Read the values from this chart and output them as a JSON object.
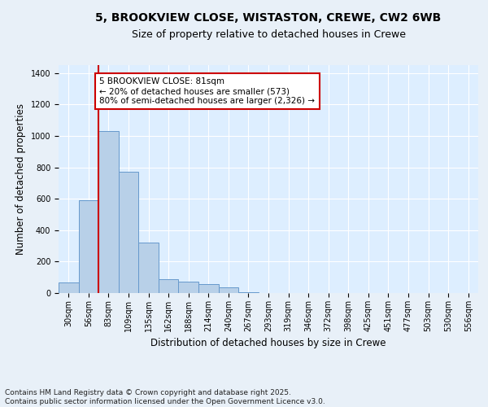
{
  "title_line1": "5, BROOKVIEW CLOSE, WISTASTON, CREWE, CW2 6WB",
  "title_line2": "Size of property relative to detached houses in Crewe",
  "xlabel": "Distribution of detached houses by size in Crewe",
  "ylabel": "Number of detached properties",
  "bin_labels": [
    "30sqm",
    "56sqm",
    "83sqm",
    "109sqm",
    "135sqm",
    "162sqm",
    "188sqm",
    "214sqm",
    "240sqm",
    "267sqm",
    "293sqm",
    "319sqm",
    "346sqm",
    "372sqm",
    "398sqm",
    "425sqm",
    "451sqm",
    "477sqm",
    "503sqm",
    "530sqm",
    "556sqm"
  ],
  "bar_values": [
    65,
    590,
    1030,
    770,
    320,
    90,
    75,
    55,
    35,
    5,
    0,
    0,
    0,
    0,
    0,
    0,
    0,
    0,
    0,
    0,
    0
  ],
  "bar_color": "#b8d0e8",
  "bar_edgecolor": "#6699cc",
  "background_color": "#ddeeff",
  "grid_color": "#ffffff",
  "fig_background": "#e8f0f8",
  "vline_x": 1.5,
  "vline_color": "#cc0000",
  "annotation_text": "5 BROOKVIEW CLOSE: 81sqm\n← 20% of detached houses are smaller (573)\n80% of semi-detached houses are larger (2,326) →",
  "annotation_box_facecolor": "#ffffff",
  "annotation_box_edgecolor": "#cc0000",
  "ylim": [
    0,
    1450
  ],
  "yticks": [
    0,
    200,
    400,
    600,
    800,
    1000,
    1200,
    1400
  ],
  "footer_text": "Contains HM Land Registry data © Crown copyright and database right 2025.\nContains public sector information licensed under the Open Government Licence v3.0.",
  "title_fontsize": 10,
  "subtitle_fontsize": 9,
  "axis_label_fontsize": 8.5,
  "tick_fontsize": 7,
  "annotation_fontsize": 7.5,
  "footer_fontsize": 6.5
}
